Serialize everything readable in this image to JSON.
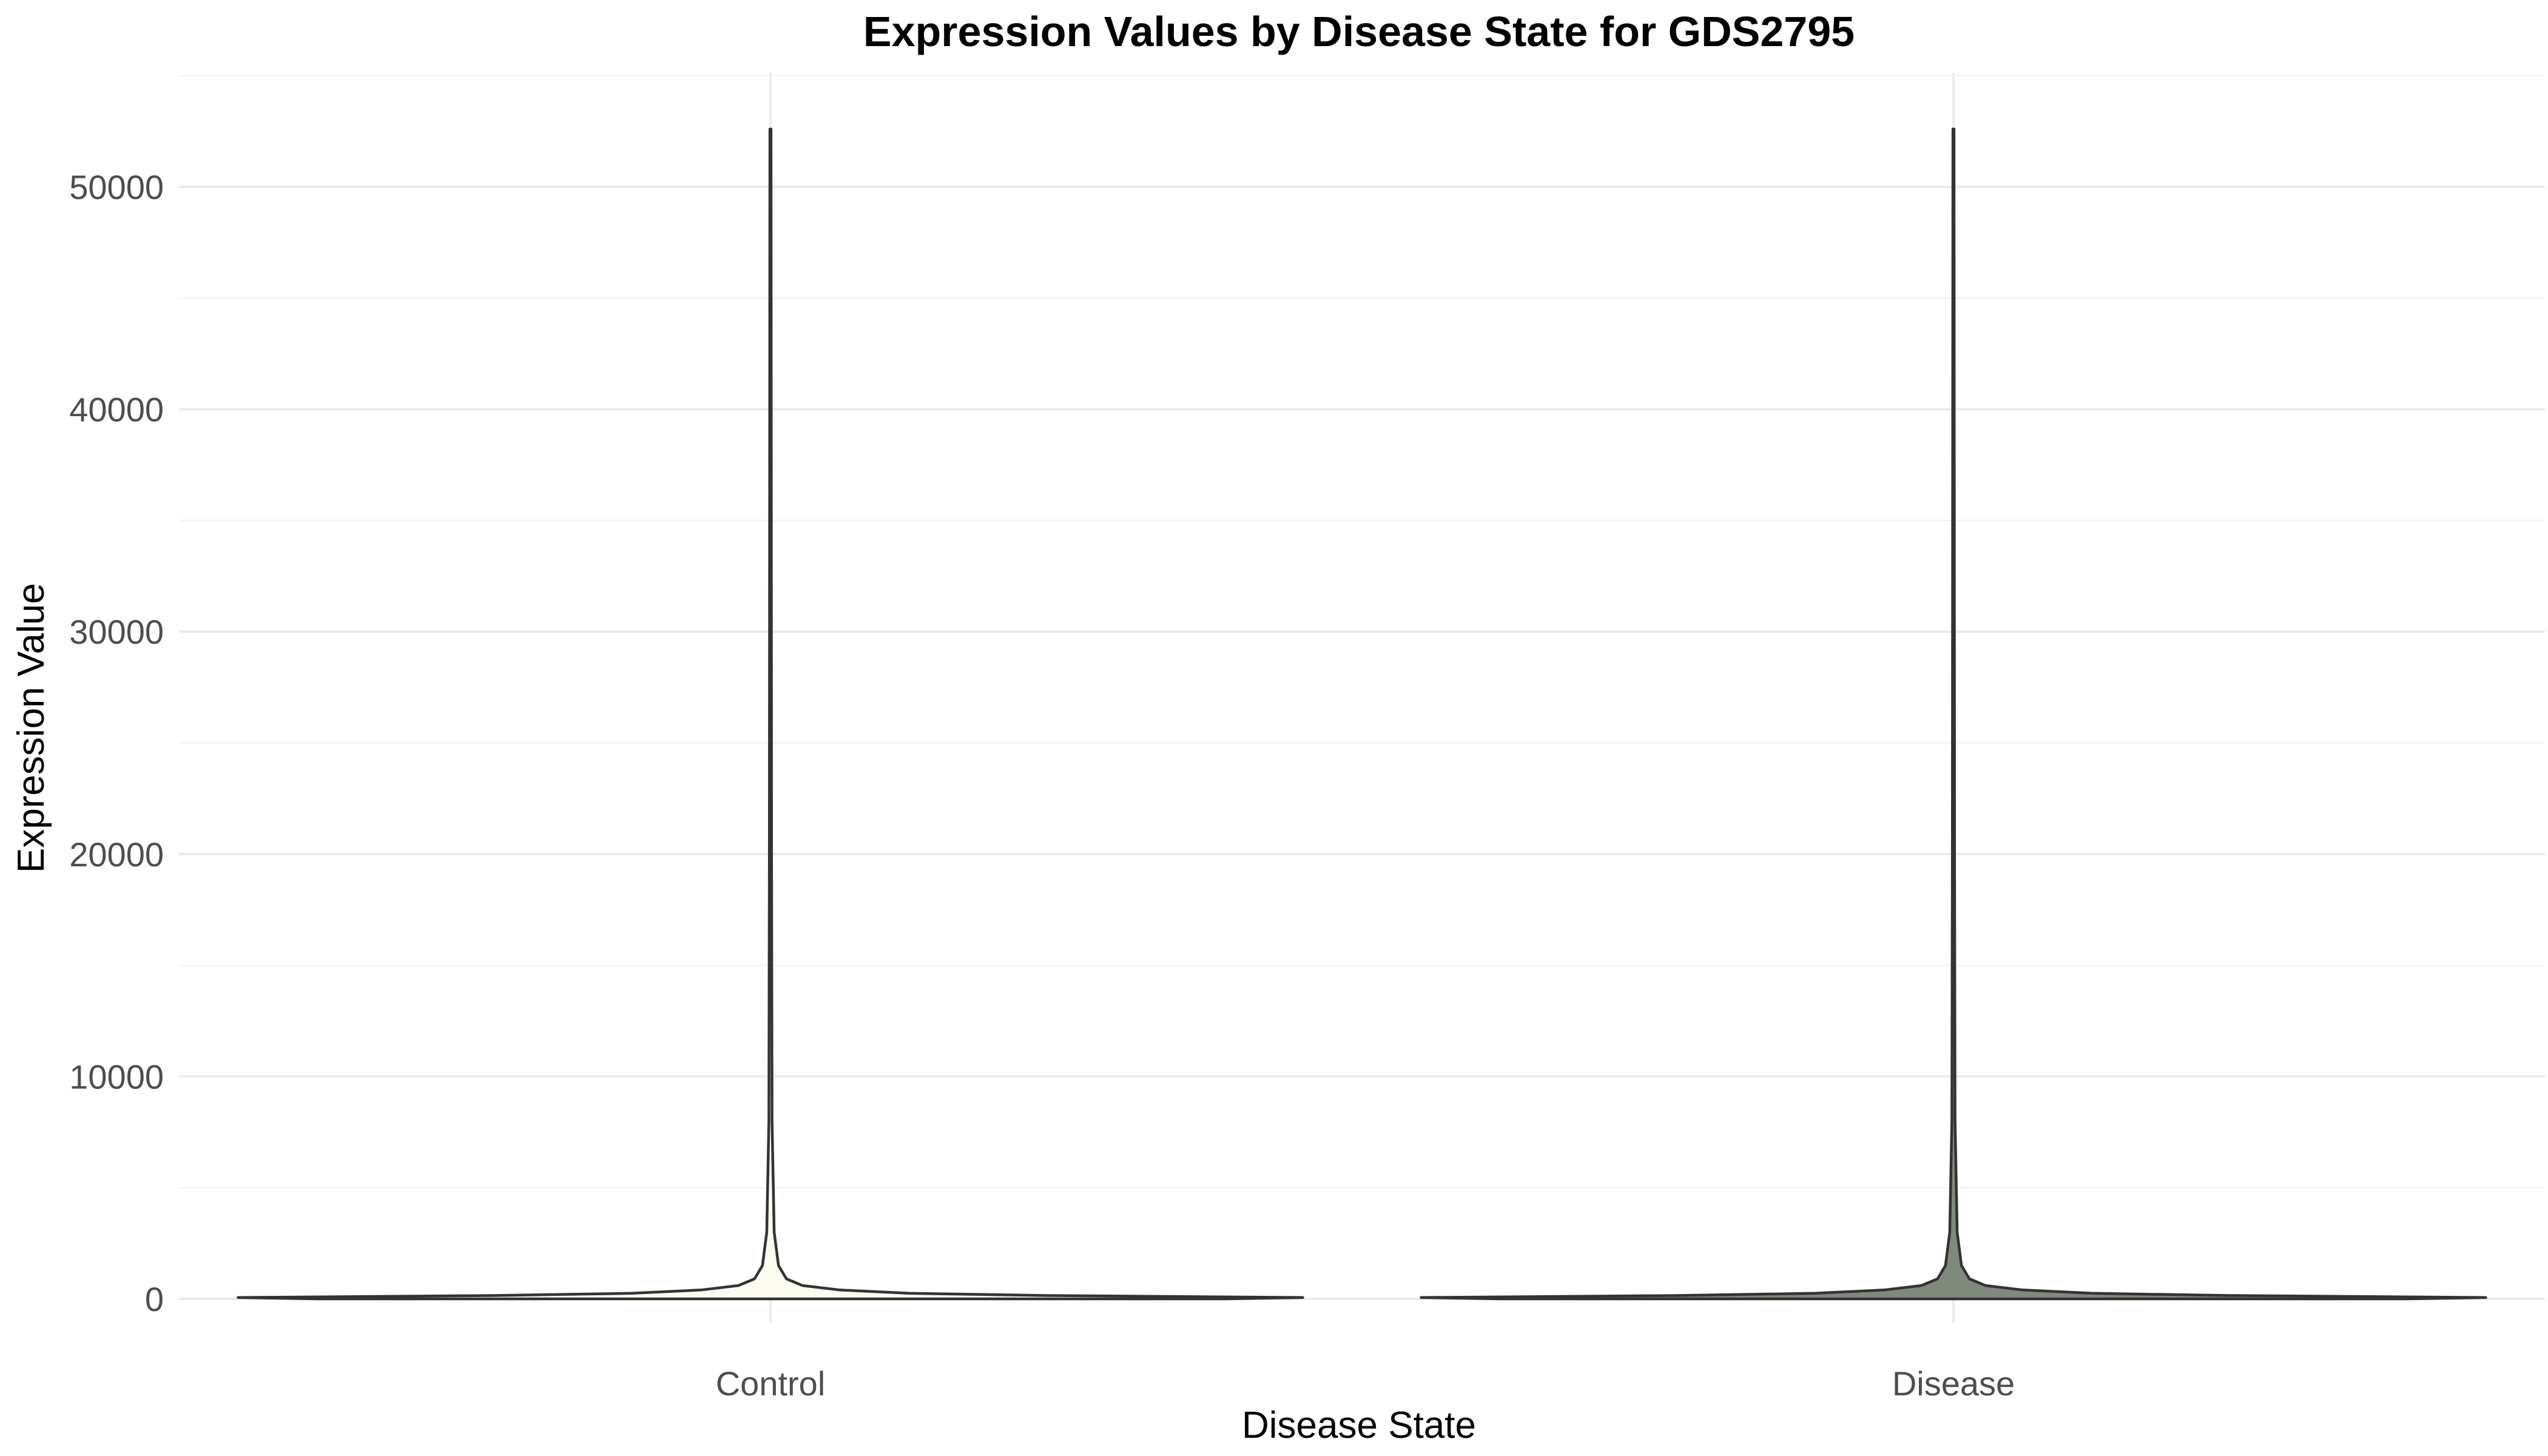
{
  "chart_data": {
    "type": "violin",
    "title": "Expression Values by Disease State for GDS2795",
    "xlabel": "Disease State",
    "ylabel": "Expression Value",
    "categories": [
      "Control",
      "Disease"
    ],
    "ylim": [
      -3800,
      55500
    ],
    "y_ticks": [
      0,
      10000,
      20000,
      30000,
      40000,
      50000
    ],
    "grid": true,
    "legend": "none",
    "series": [
      {
        "category": "Control",
        "fill": "#fbfbef",
        "min": 0,
        "max": 52600,
        "density_profile": [
          {
            "y": 0,
            "width": 0.85
          },
          {
            "y": 60,
            "width": 1.0
          },
          {
            "y": 150,
            "width": 0.52
          },
          {
            "y": 250,
            "width": 0.26
          },
          {
            "y": 400,
            "width": 0.13
          },
          {
            "y": 600,
            "width": 0.06
          },
          {
            "y": 900,
            "width": 0.03
          },
          {
            "y": 1500,
            "width": 0.015
          },
          {
            "y": 3000,
            "width": 0.007
          },
          {
            "y": 8000,
            "width": 0.003
          },
          {
            "y": 20000,
            "width": 0.002
          },
          {
            "y": 52600,
            "width": 0.001
          }
        ]
      },
      {
        "category": "Disease",
        "fill": "#808a7c",
        "min": 0,
        "max": 52600,
        "density_profile": [
          {
            "y": 0,
            "width": 0.85
          },
          {
            "y": 60,
            "width": 1.0
          },
          {
            "y": 150,
            "width": 0.52
          },
          {
            "y": 250,
            "width": 0.26
          },
          {
            "y": 400,
            "width": 0.13
          },
          {
            "y": 600,
            "width": 0.06
          },
          {
            "y": 900,
            "width": 0.03
          },
          {
            "y": 1500,
            "width": 0.015
          },
          {
            "y": 3000,
            "width": 0.007
          },
          {
            "y": 8000,
            "width": 0.003
          },
          {
            "y": 20000,
            "width": 0.002
          },
          {
            "y": 52600,
            "width": 0.001
          }
        ]
      }
    ]
  }
}
